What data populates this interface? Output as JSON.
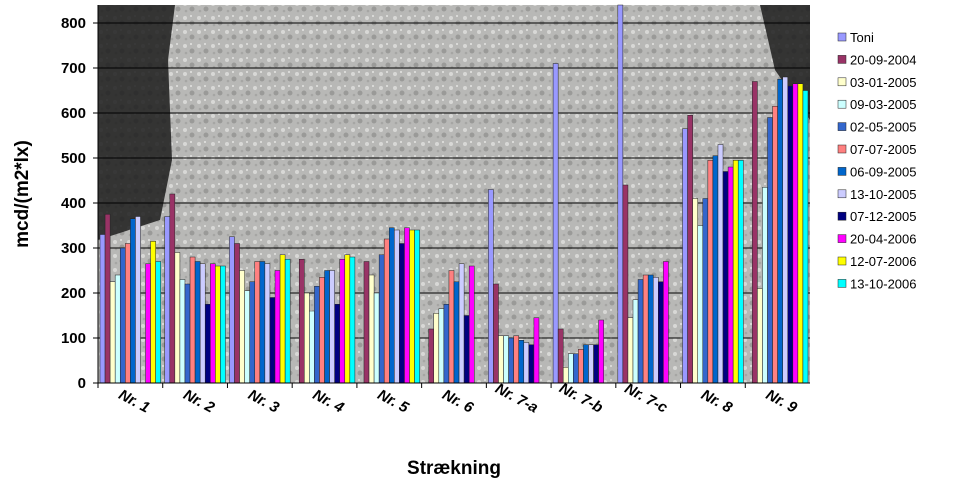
{
  "chart_data": {
    "type": "bar",
    "xlabel": "Strækning",
    "ylabel": "mcd/(m2*lx)",
    "categories": [
      "Nr. 1",
      "Nr. 2",
      "Nr. 3",
      "Nr. 4",
      "Nr. 5",
      "Nr. 6",
      "Nr. 7-a",
      "Nr. 7-b",
      "Nr. 7-c",
      "Nr. 8",
      "Nr. 9"
    ],
    "ylim": [
      0,
      840
    ],
    "yticks": [
      0,
      100,
      200,
      300,
      400,
      500,
      600,
      700,
      800
    ],
    "grid": true,
    "legend": "right",
    "series": [
      {
        "name": "Toni",
        "color": "#9999ff",
        "values": [
          330,
          370,
          325,
          null,
          null,
          null,
          430,
          710,
          840,
          565,
          null
        ]
      },
      {
        "name": "20-09-2004",
        "color": "#993366",
        "values": [
          375,
          420,
          310,
          275,
          270,
          120,
          220,
          120,
          440,
          595,
          670
        ]
      },
      {
        "name": "03-01-2005",
        "color": "#ffffcc",
        "values": [
          225,
          290,
          250,
          200,
          240,
          155,
          105,
          35,
          145,
          410,
          210
        ]
      },
      {
        "name": "09-03-2005",
        "color": "#ccffff",
        "values": [
          240,
          230,
          205,
          160,
          200,
          165,
          105,
          65,
          185,
          350,
          435
        ]
      },
      {
        "name": "02-05-2005",
        "color": "#3366cc",
        "values": [
          300,
          220,
          225,
          215,
          285,
          175,
          100,
          65,
          230,
          410,
          590
        ]
      },
      {
        "name": "07-07-2005",
        "color": "#ff8080",
        "values": [
          310,
          280,
          270,
          235,
          320,
          250,
          105,
          75,
          240,
          495,
          615
        ]
      },
      {
        "name": "06-09-2005",
        "color": "#0066cc",
        "values": [
          365,
          270,
          270,
          250,
          345,
          225,
          95,
          85,
          240,
          505,
          675
        ]
      },
      {
        "name": "13-10-2005",
        "color": "#ccccff",
        "values": [
          370,
          265,
          265,
          250,
          340,
          265,
          90,
          85,
          235,
          530,
          680
        ]
      },
      {
        "name": "07-12-2005",
        "color": "#000080",
        "values": [
          null,
          175,
          190,
          175,
          310,
          150,
          85,
          85,
          225,
          470,
          660
        ]
      },
      {
        "name": "20-04-2006",
        "color": "#ff00ff",
        "values": [
          265,
          265,
          250,
          275,
          345,
          260,
          145,
          140,
          270,
          480,
          665
        ]
      },
      {
        "name": "12-07-2006",
        "color": "#ffff00",
        "values": [
          315,
          260,
          285,
          285,
          340,
          null,
          null,
          null,
          null,
          495,
          665
        ]
      },
      {
        "name": "13-10-2006",
        "color": "#00ffff",
        "values": [
          270,
          260,
          275,
          280,
          340,
          null,
          null,
          null,
          null,
          495,
          650
        ]
      }
    ]
  }
}
